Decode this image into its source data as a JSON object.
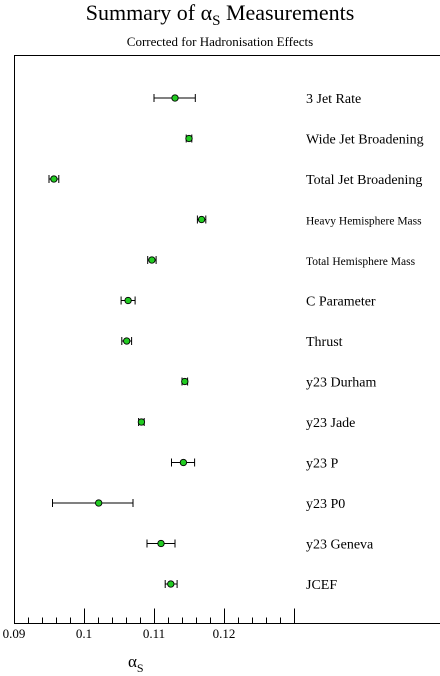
{
  "chart_data": {
    "type": "scatter",
    "title_main": "Summary of α",
    "title_sub": "S",
    "title_rest": " Measurements",
    "subtitle": "Corrected for Hadronisation Effects",
    "xlabel_main": "α",
    "xlabel_sub": "S",
    "xlim": [
      0.09,
      0.13
    ],
    "x_ticks": [
      "0.09",
      "0.1",
      "0.11",
      "0.12"
    ],
    "grid": false,
    "marker_color": "#22cc22",
    "categories": [
      "3 Jet Rate",
      "Wide Jet Broadening",
      "Total Jet Broadening",
      "Heavy Hemisphere Mass",
      "Total Hemisphere Mass",
      "C Parameter",
      "Thrust",
      "y23 Durham",
      "y23 Jade",
      "y23 P",
      "y23 P0",
      "y23 Geneva",
      "JCEF"
    ],
    "values": [
      0.113,
      0.115,
      0.0957,
      0.1168,
      0.1097,
      0.1063,
      0.1061,
      0.1144,
      0.1082,
      0.1142,
      0.1021,
      0.111,
      0.1124
    ],
    "err_low": [
      0.003,
      0.0004,
      0.0007,
      0.0006,
      0.0006,
      0.001,
      0.0007,
      0.0004,
      0.0004,
      0.0017,
      0.0066,
      0.002,
      0.0008
    ],
    "err_high": [
      0.0029,
      0.0004,
      0.0007,
      0.0006,
      0.0006,
      0.001,
      0.0007,
      0.0004,
      0.0004,
      0.0016,
      0.0049,
      0.002,
      0.0009
    ]
  }
}
